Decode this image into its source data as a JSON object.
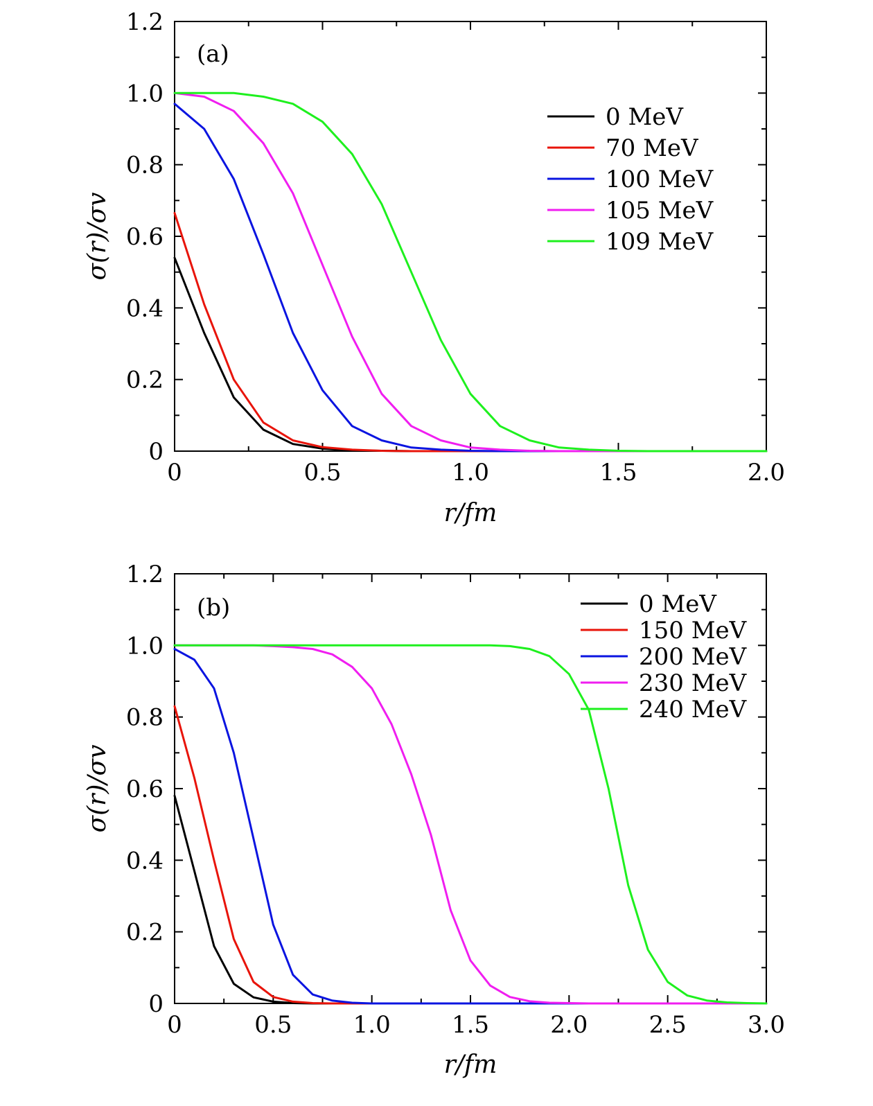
{
  "chart_data": [
    {
      "type": "line",
      "panel_label": "(a)",
      "xlabel": "r/fm",
      "ylabel": "σ(r)/σv",
      "xlim": [
        0,
        2.0
      ],
      "ylim": [
        0,
        1.2
      ],
      "xticks": [
        0,
        0.5,
        1.0,
        1.5,
        2.0
      ],
      "xtick_labels": [
        "0",
        "0.5",
        "1.0",
        "1.5",
        "2.0"
      ],
      "yticks": [
        0,
        0.2,
        0.4,
        0.6,
        0.8,
        1.0,
        1.2
      ],
      "ytick_labels": [
        "0",
        "0.2",
        "0.4",
        "0.6",
        "0.8",
        "1.0",
        "1.2"
      ],
      "legend_position": "top-right",
      "x": [
        0,
        0.1,
        0.2,
        0.3,
        0.4,
        0.5,
        0.6,
        0.7,
        0.8,
        0.9,
        1.0,
        1.1,
        1.2,
        1.3,
        1.4,
        1.5,
        1.6,
        1.7,
        1.8,
        1.9,
        2.0
      ],
      "series": [
        {
          "name": "0 MeV",
          "color": "#000000",
          "values": [
            0.54,
            0.33,
            0.15,
            0.06,
            0.02,
            0.007,
            0.002,
            0.001,
            0,
            0,
            0,
            0,
            0,
            0,
            0,
            0,
            0,
            0,
            0,
            0,
            0
          ]
        },
        {
          "name": "70 MeV",
          "color": "#e8140a",
          "values": [
            0.665,
            0.41,
            0.2,
            0.08,
            0.03,
            0.011,
            0.004,
            0.001,
            0,
            0,
            0,
            0,
            0,
            0,
            0,
            0,
            0,
            0,
            0,
            0,
            0
          ]
        },
        {
          "name": "100 MeV",
          "color": "#0a14e0",
          "values": [
            0.97,
            0.9,
            0.76,
            0.55,
            0.33,
            0.17,
            0.07,
            0.03,
            0.01,
            0.004,
            0.001,
            0,
            0,
            0,
            0,
            0,
            0,
            0,
            0,
            0,
            0
          ]
        },
        {
          "name": "105 MeV",
          "color": "#f01ef0",
          "values": [
            1.0,
            0.99,
            0.95,
            0.86,
            0.72,
            0.52,
            0.32,
            0.16,
            0.07,
            0.03,
            0.01,
            0.004,
            0.001,
            0,
            0,
            0,
            0,
            0,
            0,
            0,
            0
          ]
        },
        {
          "name": "109 MeV",
          "color": "#1ef01e",
          "values": [
            1.0,
            1.0,
            1.0,
            0.99,
            0.97,
            0.92,
            0.83,
            0.69,
            0.5,
            0.31,
            0.16,
            0.07,
            0.03,
            0.01,
            0.004,
            0.001,
            0,
            0,
            0,
            0,
            0
          ]
        }
      ]
    },
    {
      "type": "line",
      "panel_label": "(b)",
      "xlabel": "r/fm",
      "ylabel": "σ(r)/σv",
      "xlim": [
        0,
        3.0
      ],
      "ylim": [
        0,
        1.2
      ],
      "xticks": [
        0,
        0.5,
        1.0,
        1.5,
        2.0,
        2.5,
        3.0
      ],
      "xtick_labels": [
        "0",
        "0.5",
        "1.0",
        "1.5",
        "2.0",
        "2.5",
        "3.0"
      ],
      "yticks": [
        0,
        0.2,
        0.4,
        0.6,
        0.8,
        1.0,
        1.2
      ],
      "ytick_labels": [
        "0",
        "0.2",
        "0.4",
        "0.6",
        "0.8",
        "1.0",
        "1.2"
      ],
      "legend_position": "top-right",
      "x": [
        0,
        0.1,
        0.2,
        0.3,
        0.4,
        0.5,
        0.6,
        0.7,
        0.8,
        0.9,
        1.0,
        1.1,
        1.2,
        1.3,
        1.4,
        1.5,
        1.6,
        1.7,
        1.8,
        1.9,
        2.0,
        2.1,
        2.2,
        2.3,
        2.4,
        2.5,
        2.6,
        2.7,
        2.8,
        2.9,
        3.0
      ],
      "series": [
        {
          "name": "0 MeV",
          "color": "#000000",
          "values": [
            0.58,
            0.37,
            0.16,
            0.055,
            0.017,
            0.005,
            0.001,
            0,
            0,
            0,
            0,
            0,
            0,
            0,
            0,
            0,
            0,
            0,
            0,
            0,
            0,
            0,
            0,
            0,
            0,
            0,
            0,
            0,
            0,
            0,
            0
          ]
        },
        {
          "name": "150 MeV",
          "color": "#e8140a",
          "values": [
            0.83,
            0.63,
            0.4,
            0.18,
            0.06,
            0.018,
            0.005,
            0.001,
            0,
            0,
            0,
            0,
            0,
            0,
            0,
            0,
            0,
            0,
            0,
            0,
            0,
            0,
            0,
            0,
            0,
            0,
            0,
            0,
            0,
            0,
            0
          ]
        },
        {
          "name": "200 MeV",
          "color": "#0a14e0",
          "values": [
            0.99,
            0.96,
            0.88,
            0.7,
            0.46,
            0.22,
            0.08,
            0.025,
            0.008,
            0.002,
            0,
            0,
            0,
            0,
            0,
            0,
            0,
            0,
            0,
            0,
            0,
            0,
            0,
            0,
            0,
            0,
            0,
            0,
            0,
            0,
            0
          ]
        },
        {
          "name": "230 MeV",
          "color": "#f01ef0",
          "values": [
            1.0,
            1.0,
            1.0,
            1.0,
            1.0,
            0.998,
            0.995,
            0.99,
            0.975,
            0.94,
            0.88,
            0.78,
            0.64,
            0.47,
            0.26,
            0.12,
            0.05,
            0.018,
            0.006,
            0.002,
            0.001,
            0,
            0,
            0,
            0,
            0,
            0,
            0,
            0,
            0,
            0
          ]
        },
        {
          "name": "240 MeV",
          "color": "#1ef01e",
          "values": [
            1.0,
            1.0,
            1.0,
            1.0,
            1.0,
            1.0,
            1.0,
            1.0,
            1.0,
            1.0,
            1.0,
            1.0,
            1.0,
            1.0,
            1.0,
            1.0,
            1.0,
            0.998,
            0.99,
            0.97,
            0.92,
            0.82,
            0.6,
            0.33,
            0.15,
            0.06,
            0.022,
            0.008,
            0.003,
            0.001,
            0
          ]
        }
      ]
    }
  ]
}
